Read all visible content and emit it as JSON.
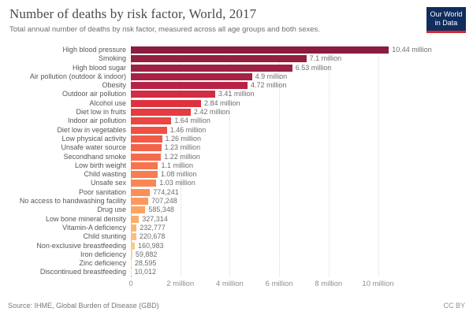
{
  "header": {
    "title": "Number of deaths by risk factor, World, 2017",
    "subtitle": "Total annual number of deaths by risk factor, measured across all age groups and both sexes.",
    "logo": {
      "line1": "Our World",
      "line2": "in Data",
      "bg_color": "#102d5e",
      "accent_color": "#d7282f"
    }
  },
  "chart_data": {
    "type": "bar",
    "orientation": "horizontal",
    "title": "Number of deaths by risk factor, World, 2017",
    "xlabel": "",
    "ylabel": "",
    "unit": "deaths per year",
    "grid": "vertical-dotted",
    "x_axis": {
      "min": 0,
      "max_value_shown": 10440000,
      "ticks": [
        {
          "value_millions": 0,
          "label": "0"
        },
        {
          "value_millions": 2,
          "label": "2 million"
        },
        {
          "value_millions": 4,
          "label": "4 million"
        },
        {
          "value_millions": 6,
          "label": "6 million"
        },
        {
          "value_millions": 8,
          "label": "8 million"
        },
        {
          "value_millions": 10,
          "label": "10 million"
        }
      ]
    },
    "bars": [
      {
        "label": "High blood pressure",
        "value": 10440000,
        "value_millions": 10.44,
        "value_label": "10.44 million",
        "color": "#8b1b3f"
      },
      {
        "label": "Smoking",
        "value": 7100000,
        "value_millions": 7.1,
        "value_label": "7.1 million",
        "color": "#93203f"
      },
      {
        "label": "High blood sugar",
        "value": 6530000,
        "value_millions": 6.53,
        "value_label": "6.53 million",
        "color": "#9c2142"
      },
      {
        "label": "Air pollution (outdoor & indoor)",
        "value": 4900000,
        "value_millions": 4.9,
        "value_label": "4.9 million",
        "color": "#a72345"
      },
      {
        "label": "Obesity",
        "value": 4720000,
        "value_millions": 4.72,
        "value_label": "4.72 million",
        "color": "#b52447"
      },
      {
        "label": "Outdoor air pollution",
        "value": 3410000,
        "value_millions": 3.41,
        "value_label": "3.41 million",
        "color": "#d02c45"
      },
      {
        "label": "Alcohol use",
        "value": 2840000,
        "value_millions": 2.84,
        "value_label": "2.84 million",
        "color": "#dd3341"
      },
      {
        "label": "Diet low in fruits",
        "value": 2420000,
        "value_millions": 2.42,
        "value_label": "2.42 million",
        "color": "#e43c40"
      },
      {
        "label": "Indoor air pollution",
        "value": 1640000,
        "value_millions": 1.64,
        "value_label": "1.64 million",
        "color": "#ea4642"
      },
      {
        "label": "Diet low in vegetables",
        "value": 1460000,
        "value_millions": 1.46,
        "value_label": "1.46 million",
        "color": "#ee5044"
      },
      {
        "label": "Low physical activity",
        "value": 1260000,
        "value_millions": 1.26,
        "value_label": "1.26 million",
        "color": "#f05a46"
      },
      {
        "label": "Unsafe water source",
        "value": 1230000,
        "value_millions": 1.23,
        "value_label": "1.23 million",
        "color": "#f26349"
      },
      {
        "label": "Secondhand smoke",
        "value": 1220000,
        "value_millions": 1.22,
        "value_label": "1.22 million",
        "color": "#f46c4b"
      },
      {
        "label": "Low birth weight",
        "value": 1100000,
        "value_millions": 1.1,
        "value_label": "1.1 million",
        "color": "#f6754e"
      },
      {
        "label": "Child wasting",
        "value": 1080000,
        "value_millions": 1.08,
        "value_label": "1.08 million",
        "color": "#f77e50"
      },
      {
        "label": "Unsafe sex",
        "value": 1030000,
        "value_millions": 1.03,
        "value_label": "1.03 million",
        "color": "#f98754"
      },
      {
        "label": "Poor sanitation",
        "value": 774241,
        "value_millions": 0.774241,
        "value_label": "774,241",
        "color": "#fa9058"
      },
      {
        "label": "No access to handwashing facility",
        "value": 707248,
        "value_millions": 0.707248,
        "value_label": "707,248",
        "color": "#fb995d"
      },
      {
        "label": "Drug use",
        "value": 585348,
        "value_millions": 0.585348,
        "value_label": "585,348",
        "color": "#fca263"
      },
      {
        "label": "Low bone mineral density",
        "value": 327314,
        "value_millions": 0.327314,
        "value_label": "327,314",
        "color": "#fcac6a"
      },
      {
        "label": "Vitamin-A deficiency",
        "value": 232777,
        "value_millions": 0.232777,
        "value_label": "232,777",
        "color": "#fdb572"
      },
      {
        "label": "Child stunting",
        "value": 220678,
        "value_millions": 0.220678,
        "value_label": "220,678",
        "color": "#fdbf7b"
      },
      {
        "label": "Non-exclusive breastfeeding",
        "value": 160983,
        "value_millions": 0.160983,
        "value_label": "160,983",
        "color": "#fdc985"
      },
      {
        "label": "Iron deficiency",
        "value": 59882,
        "value_millions": 0.059882,
        "value_label": "59,882",
        "color": "#fed490"
      },
      {
        "label": "Zinc deficiency",
        "value": 28595,
        "value_millions": 0.028595,
        "value_label": "28,595",
        "color": "#fede9c"
      },
      {
        "label": "Discontinued breastfeeding",
        "value": 10012,
        "value_millions": 0.010012,
        "value_label": "10,012",
        "color": "#fee8a9"
      }
    ]
  },
  "footer": {
    "source": "Source: IHME, Global Burden of Disease (GBD)",
    "license": "CC BY"
  }
}
